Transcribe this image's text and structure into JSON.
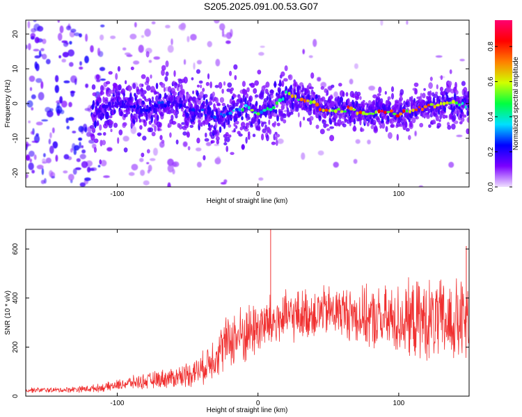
{
  "figure": {
    "title": "S205.2025.091.00.53.G07"
  },
  "chart_data": [
    {
      "type": "heatmap",
      "title": "S205.2025.091.00.53.G07",
      "xlabel": "Height of straight line (km)",
      "ylabel": "Frequency (Hz)",
      "xlim": [
        -165,
        150
      ],
      "ylim": [
        -24,
        24
      ],
      "x_ticks": [
        -100,
        0,
        100
      ],
      "y_ticks": [
        -20,
        -10,
        0,
        10,
        20
      ],
      "colorbar": {
        "label": "Normalized spectral amplitude",
        "range": [
          0,
          0.95
        ],
        "ticks": [
          0.0,
          0.2,
          0.4,
          0.6,
          0.8
        ],
        "colormap": [
          "#f0e0ff",
          "#7b00ff",
          "#0000ff",
          "#00e0ff",
          "#00ff40",
          "#d0ff00",
          "#ff8000",
          "#ff0000",
          "#ff0070"
        ]
      },
      "ridge": {
        "x": [
          -110,
          -100,
          -90,
          -80,
          -70,
          -60,
          -50,
          -40,
          -30,
          -20,
          -10,
          0,
          10,
          20,
          30,
          40,
          50,
          60,
          70,
          80,
          90,
          100,
          110,
          120,
          130,
          140,
          150
        ],
        "y": [
          -2,
          0,
          -1,
          -2,
          0,
          0,
          -1,
          -2,
          -4,
          -3,
          -1,
          -3,
          -1,
          3,
          1,
          0,
          -2,
          -2,
          -2,
          -3,
          -2,
          -3,
          -2,
          -1,
          0,
          0,
          -1
        ],
        "peak_amplitude": [
          0.2,
          0.2,
          0.25,
          0.25,
          0.3,
          0.25,
          0.25,
          0.3,
          0.3,
          0.35,
          0.6,
          0.55,
          0.5,
          0.75,
          0.8,
          0.8,
          0.8,
          0.85,
          0.85,
          0.9,
          0.9,
          0.85,
          0.85,
          0.8,
          0.8,
          0.7,
          0.3
        ]
      }
    },
    {
      "type": "line",
      "xlabel": "Height of straight line (km)",
      "ylabel": "SNR (10 * v/v)",
      "xlim": [
        -165,
        150
      ],
      "ylim": [
        0,
        680
      ],
      "x_ticks": [
        -100,
        0,
        100
      ],
      "y_ticks": [
        0,
        200,
        400,
        600
      ],
      "series": [
        {
          "color": "#f03030",
          "x": [
            -165,
            -150,
            -140,
            -130,
            -120,
            -110,
            -100,
            -90,
            -80,
            -70,
            -60,
            -50,
            -40,
            -30,
            -20,
            -10,
            0,
            10,
            20,
            30,
            40,
            50,
            60,
            70,
            80,
            90,
            100,
            110,
            120,
            130,
            140,
            150
          ],
          "y": [
            25,
            25,
            25,
            28,
            30,
            35,
            45,
            55,
            60,
            70,
            75,
            90,
            110,
            170,
            230,
            250,
            280,
            300,
            320,
            330,
            340,
            345,
            345,
            330,
            315,
            310,
            310,
            310,
            310,
            305,
            300,
            300
          ],
          "noise_amplitude": [
            10,
            10,
            10,
            12,
            14,
            16,
            20,
            25,
            30,
            35,
            40,
            50,
            60,
            90,
            110,
            120,
            110,
            110,
            100,
            100,
            100,
            100,
            100,
            110,
            120,
            130,
            140,
            150,
            160,
            160,
            170,
            170
          ]
        }
      ],
      "spikes": [
        {
          "x": 9,
          "y": 680
        },
        {
          "x": 148,
          "y": 612
        }
      ]
    }
  ]
}
